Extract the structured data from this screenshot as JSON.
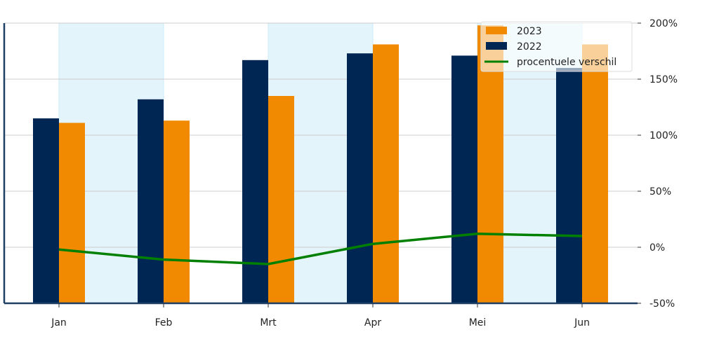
{
  "chart_data": {
    "type": "bar",
    "title": "",
    "xlabel": "",
    "ylabel": "",
    "categories": [
      "Jan",
      "Feb",
      "Mrt",
      "Apr",
      "Mei",
      "Jun"
    ],
    "series": [
      {
        "name": "2022",
        "kind": "bar",
        "color": "#002654",
        "values": [
          115,
          132,
          167,
          173,
          171,
          160
        ]
      },
      {
        "name": "2023",
        "kind": "bar",
        "color": "#F18A00",
        "values": [
          111,
          113,
          135,
          181,
          198,
          181
        ]
      },
      {
        "name": "procentuele verschil",
        "kind": "line",
        "color": "#008000",
        "values": [
          -2,
          -11,
          -15,
          3,
          12,
          10
        ]
      }
    ],
    "legend_order": [
      "2023",
      "2022",
      "procentuele verschil"
    ],
    "ylim": [
      -50,
      200
    ],
    "yticks": [
      -50,
      0,
      50,
      100,
      150,
      200
    ],
    "ytick_labels": [
      "-50%",
      "0%",
      "50%",
      "100%",
      "150%",
      "200%"
    ],
    "y_axis_side": "right",
    "grid": "horizontal",
    "legend_placement": "top-right",
    "band_color": "#E3F4FB",
    "shaded_bands": [
      [
        "Jan",
        "Feb"
      ],
      [
        "Mrt",
        "Apr"
      ],
      [
        "Mei",
        "Jun"
      ]
    ]
  }
}
